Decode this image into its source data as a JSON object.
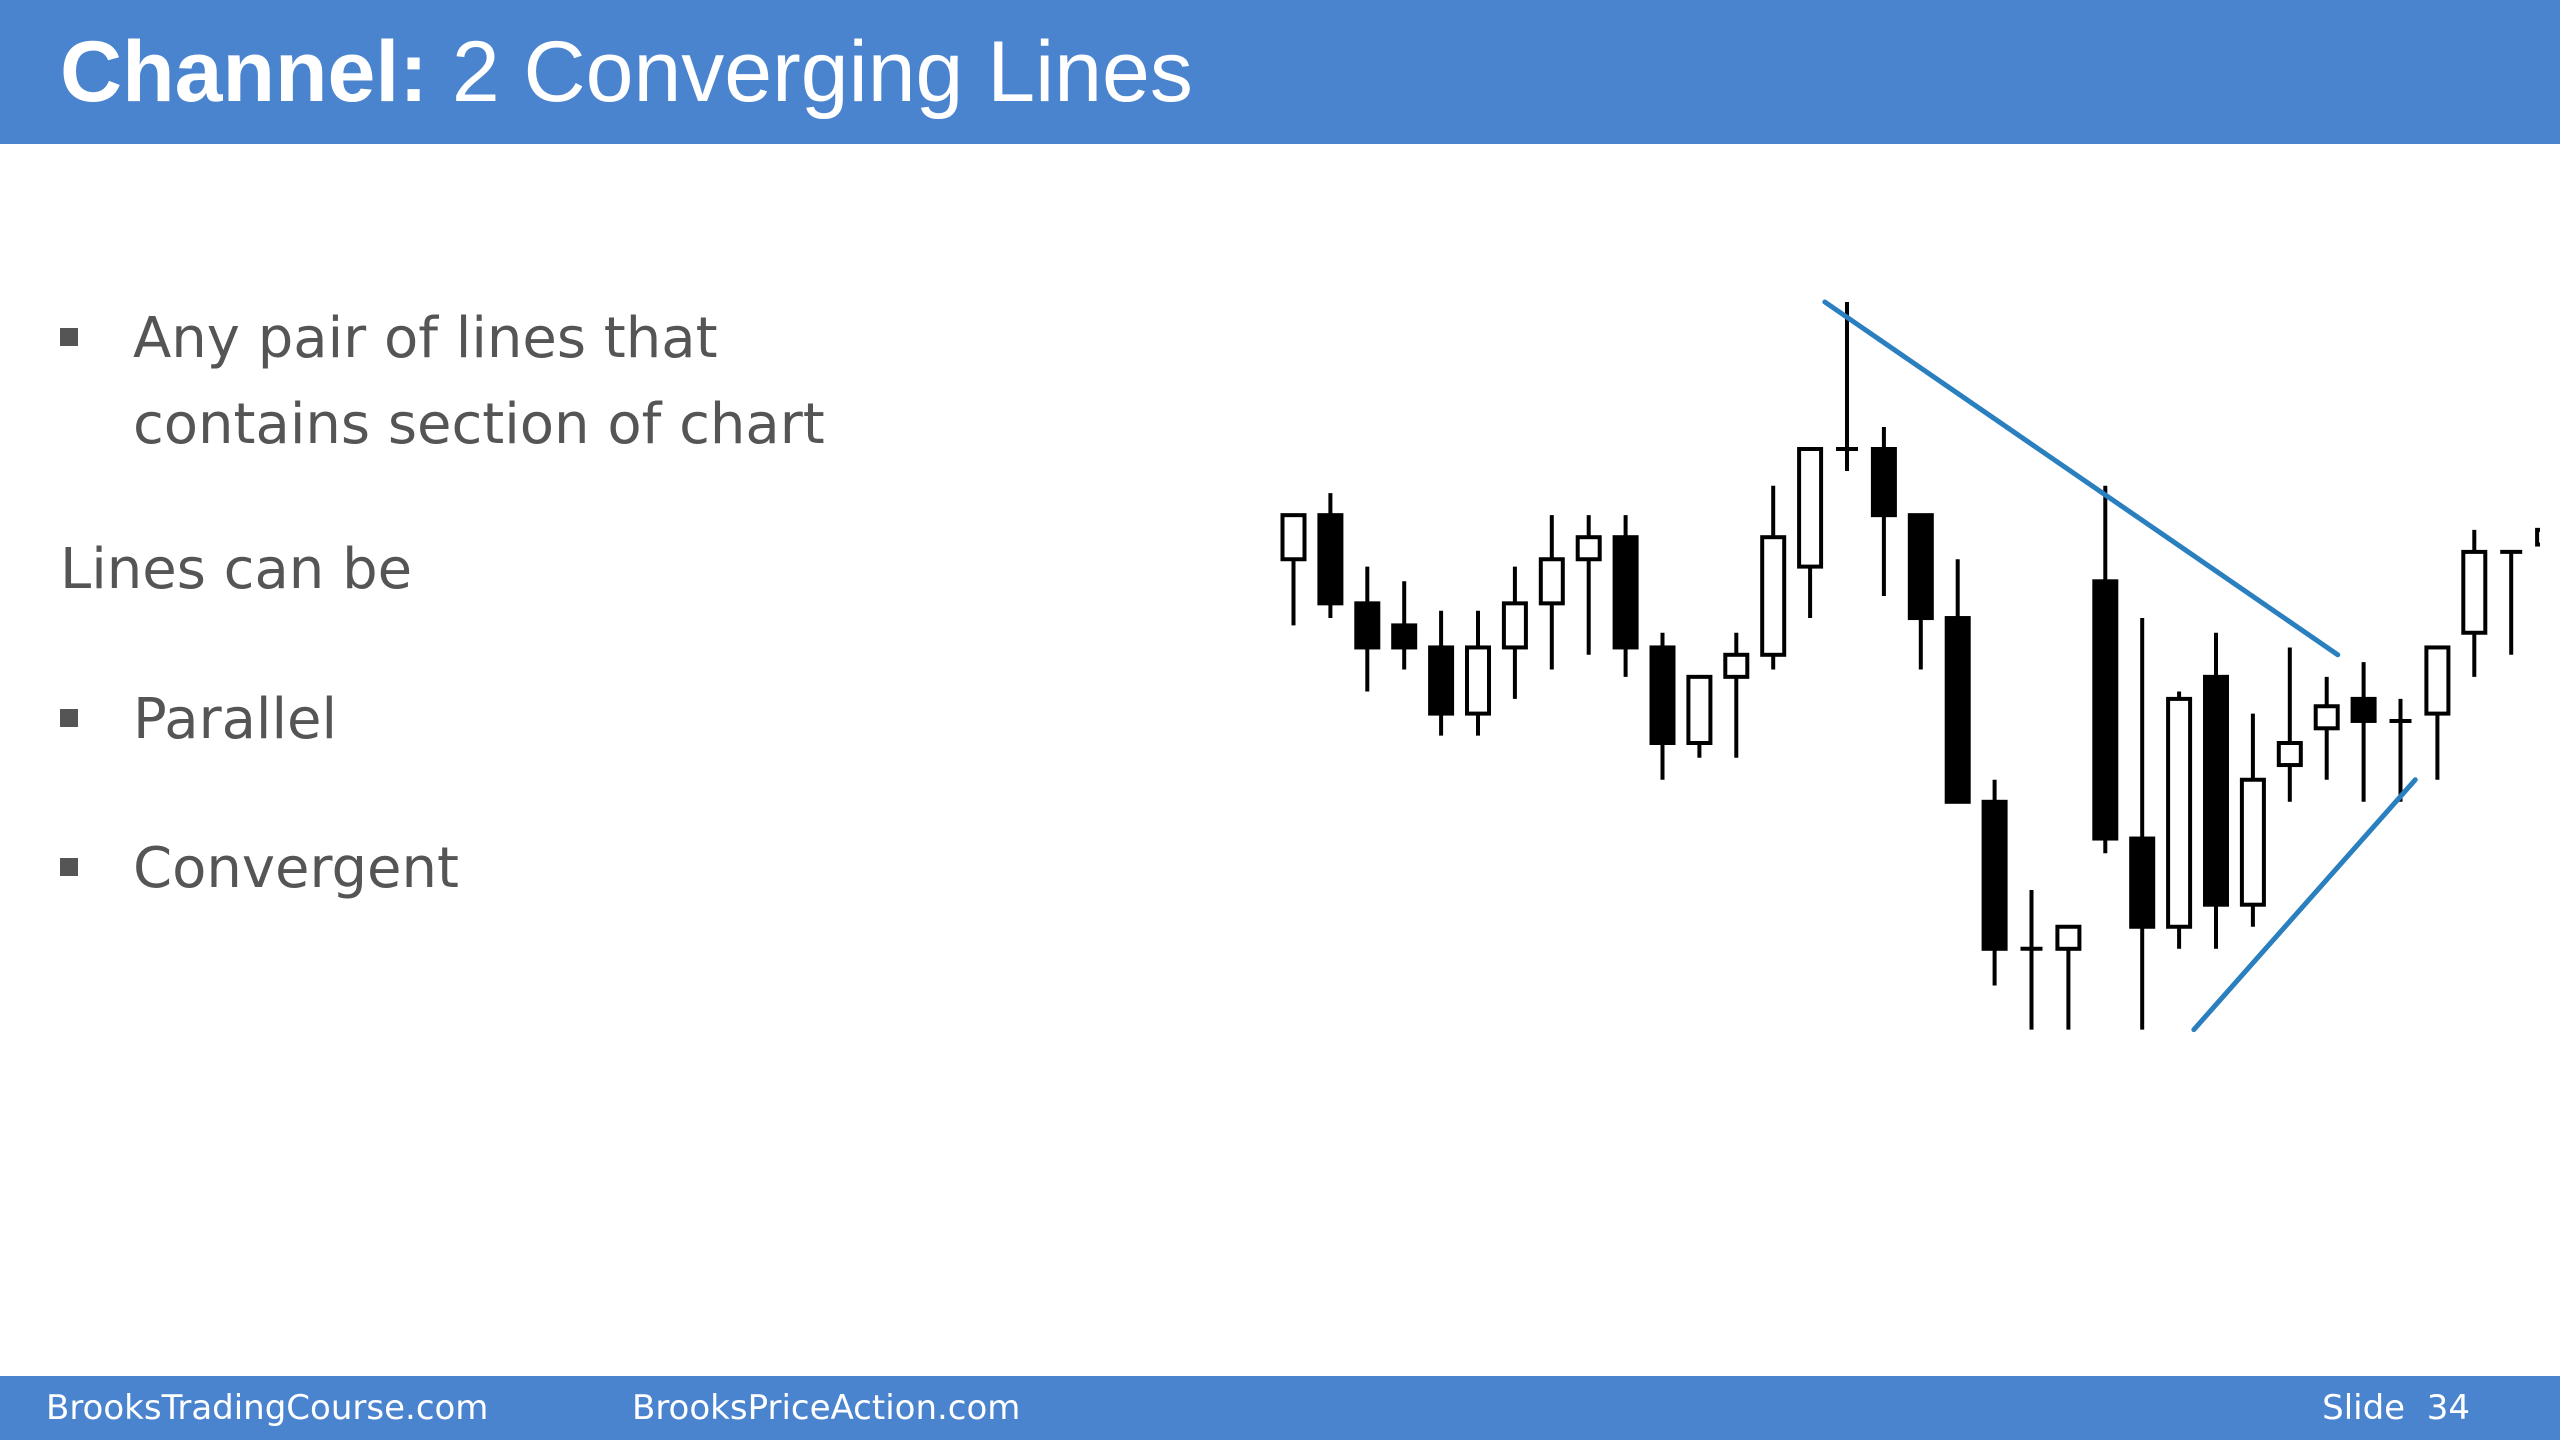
{
  "header": {
    "title_bold": "Channel:",
    "title_rest": "2 Converging Lines"
  },
  "bullets_top": [
    "Any pair of lines that",
    "contains section of chart"
  ],
  "lines_can_be": "Lines can be",
  "bullets": [
    "Parallel",
    "Convergent"
  ],
  "footer": {
    "left": "BrooksTradingCourse.com",
    "middle": "BrooksPriceAction.com",
    "slide_label": "Slide",
    "slide_number": "34"
  },
  "colors": {
    "header_bg": "#4a84cf",
    "line_color": "#2a7fbf",
    "text": "#555555",
    "bull_body": "#ffffff",
    "bear_body": "#000000"
  },
  "chart_data": {
    "type": "candlestick",
    "bars": [
      {
        "o": 63,
        "h": 59,
        "l": 72,
        "c": 57
      },
      {
        "o": 57,
        "h": 54,
        "l": 71,
        "c": 69
      },
      {
        "o": 69,
        "h": 64,
        "l": 81,
        "c": 75
      },
      {
        "o": 72,
        "h": 66,
        "l": 78,
        "c": 75
      },
      {
        "o": 75,
        "h": 70,
        "l": 87,
        "c": 84
      },
      {
        "o": 84,
        "h": 70,
        "l": 87,
        "c": 75
      },
      {
        "o": 75,
        "h": 64,
        "l": 82,
        "c": 69
      },
      {
        "o": 69,
        "h": 57,
        "l": 78,
        "c": 63
      },
      {
        "o": 63,
        "h": 57,
        "l": 76,
        "c": 60
      },
      {
        "o": 60,
        "h": 57,
        "l": 79,
        "c": 75
      },
      {
        "o": 75,
        "h": 73,
        "l": 93,
        "c": 88
      },
      {
        "o": 88,
        "h": 79,
        "l": 90,
        "c": 79
      },
      {
        "o": 79,
        "h": 73,
        "l": 90,
        "c": 76
      },
      {
        "o": 76,
        "h": 53,
        "l": 78,
        "c": 60
      },
      {
        "o": 64,
        "h": 49,
        "l": 71,
        "c": 48
      },
      {
        "o": 48,
        "h": 28,
        "l": 51,
        "c": 48
      },
      {
        "o": 48,
        "h": 45,
        "l": 68,
        "c": 57
      },
      {
        "o": 57,
        "h": 60,
        "l": 78,
        "c": 71
      },
      {
        "o": 71,
        "h": 63,
        "l": 96,
        "c": 96
      },
      {
        "o": 96,
        "h": 93,
        "l": 121,
        "c": 116
      },
      {
        "o": 116,
        "h": 108,
        "l": 127,
        "c": 116
      },
      {
        "o": 116,
        "h": 116,
        "l": 127,
        "c": 113
      },
      {
        "o": 66,
        "h": 53,
        "l": 103,
        "c": 101
      },
      {
        "o": 101,
        "h": 71,
        "l": 127,
        "c": 113
      },
      {
        "o": 113,
        "h": 81,
        "l": 116,
        "c": 82
      },
      {
        "o": 79,
        "h": 73,
        "l": 116,
        "c": 110
      },
      {
        "o": 110,
        "h": 84,
        "l": 113,
        "c": 93
      },
      {
        "o": 91,
        "h": 75,
        "l": 96,
        "c": 88
      },
      {
        "o": 86,
        "h": 79,
        "l": 93,
        "c": 83
      },
      {
        "o": 82,
        "h": 77,
        "l": 96,
        "c": 85
      },
      {
        "o": 85,
        "h": 82,
        "l": 96,
        "c": 85
      },
      {
        "o": 84,
        "h": 75,
        "l": 93,
        "c": 75
      },
      {
        "o": 73,
        "h": 59,
        "l": 79,
        "c": 62
      },
      {
        "o": 62,
        "h": 62,
        "l": 76,
        "c": 62
      },
      {
        "o": 61,
        "h": 48,
        "l": 70,
        "c": 59
      }
    ],
    "trendlines": [
      {
        "name": "upper",
        "x": [
          14.4,
          28.3
        ],
        "y": [
          28,
          76
        ]
      },
      {
        "name": "lower",
        "x": [
          24.4,
          30.4
        ],
        "y": [
          127,
          93
        ]
      }
    ]
  }
}
